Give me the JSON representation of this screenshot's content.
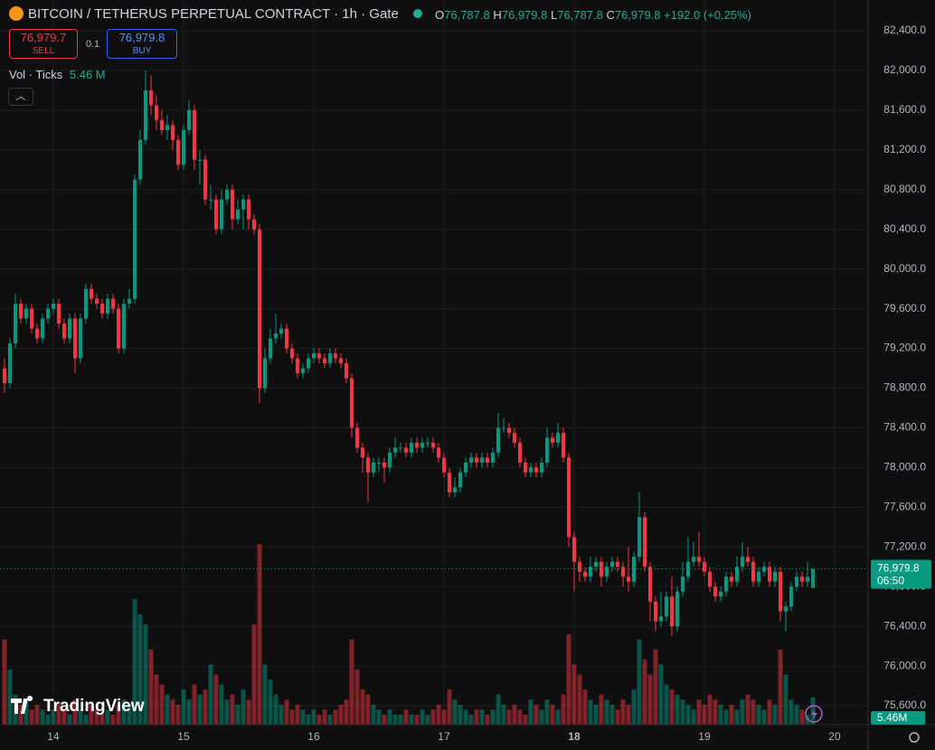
{
  "header": {
    "title": "BITCOIN / TETHERUS PERPETUAL CONTRACT · 1h · Gate",
    "ohlc": [
      {
        "label": "O",
        "value": "76,787.8"
      },
      {
        "label": "H",
        "value": "76,979.8"
      },
      {
        "label": "L",
        "value": "76,787.8"
      },
      {
        "label": "C",
        "value": "76,979.8"
      }
    ],
    "change": "+192.0 (+0.25%)"
  },
  "trade": {
    "sell_price": "76,979.7",
    "sell": "SELL",
    "size": "0.1",
    "buy_price": "76,979.8",
    "buy": "BUY"
  },
  "volume_legend": {
    "label": "Vol · Ticks",
    "value": "5.46 M"
  },
  "logo": "TradingView",
  "chart_data": {
    "type": "candlestick",
    "x": [
      15,
      16,
      17,
      18,
      19,
      20,
      21,
      22,
      23,
      24,
      25,
      26,
      27,
      28,
      29,
      30,
      31,
      32,
      33,
      34,
      35,
      36,
      37,
      38,
      39,
      40,
      41,
      42,
      43,
      44,
      45,
      46,
      47,
      48,
      49,
      50,
      51,
      52,
      53,
      54,
      55,
      56,
      57,
      58,
      59,
      60,
      61,
      62,
      63,
      64,
      65,
      66,
      67,
      68,
      69,
      70,
      71,
      72,
      73,
      74,
      75,
      76,
      77,
      78,
      79,
      80,
      81,
      82,
      83,
      84,
      85,
      86,
      87,
      88,
      89,
      90,
      91,
      92,
      93,
      94,
      95,
      96,
      97,
      98,
      99,
      100,
      101,
      102,
      103,
      104,
      105,
      106,
      107,
      108,
      109,
      110,
      111,
      112,
      113,
      114,
      115,
      116,
      117,
      118,
      119,
      120,
      121,
      122,
      123,
      124,
      125,
      126,
      127,
      128,
      129,
      130,
      131,
      132,
      133,
      134,
      135,
      136,
      137,
      138,
      139,
      140,
      141,
      142,
      143,
      144,
      145,
      146,
      147,
      148,
      149,
      150,
      151,
      152,
      153,
      154,
      155,
      156,
      157,
      158,
      159,
      160,
      161,
      162,
      163,
      164
    ],
    "open": [
      79000,
      78850,
      79250,
      79650,
      79500,
      79600,
      79400,
      79300,
      79500,
      79600,
      79650,
      79450,
      79300,
      79500,
      79100,
      79500,
      79800,
      79700,
      79650,
      79550,
      79700,
      79600,
      79200,
      79650,
      79700,
      80900,
      81300,
      81800,
      81650,
      81500,
      81400,
      81450,
      81300,
      81050,
      81400,
      81600,
      81100,
      81100,
      80700,
      80700,
      80400,
      80700,
      80800,
      80500,
      80600,
      80700,
      80500,
      80400,
      78800,
      79100,
      79300,
      79350,
      79400,
      79200,
      79100,
      78950,
      79000,
      79100,
      79150,
      79100,
      79050,
      79150,
      79100,
      79050,
      78900,
      78400,
      78200,
      78100,
      77950,
      78050,
      78050,
      78000,
      78150,
      78200,
      78200,
      78150,
      78250,
      78200,
      78250,
      78250,
      78200,
      78100,
      77950,
      77750,
      77800,
      77950,
      78050,
      78100,
      78050,
      78100,
      78050,
      78150,
      78400,
      78400,
      78350,
      78250,
      78050,
      77950,
      78000,
      77950,
      78050,
      78300,
      78250,
      78350,
      78100,
      77300,
      77050,
      76950,
      76900,
      77000,
      77050,
      76900,
      77000,
      77050,
      77000,
      76900,
      76850,
      77100,
      77500,
      77000,
      76650,
      76450,
      76500,
      76700,
      76400,
      76750,
      76900,
      77050,
      77100,
      77050,
      76950,
      76800,
      76700,
      76750,
      76900,
      76850,
      77000,
      77100,
      77050,
      76850,
      76950,
      77000,
      76850,
      76950,
      76550,
      76600,
      76800,
      76900,
      76850,
      76787.8
    ],
    "high": [
      79100,
      79300,
      79750,
      79700,
      79650,
      79650,
      79450,
      79550,
      79650,
      79700,
      79700,
      79500,
      79550,
      79550,
      79550,
      79850,
      79850,
      79750,
      79700,
      79750,
      79750,
      79650,
      79700,
      79800,
      80950,
      81400,
      82000,
      81950,
      81750,
      81600,
      81550,
      81500,
      81350,
      81450,
      81700,
      81650,
      81200,
      81150,
      80850,
      80750,
      80800,
      80850,
      80850,
      80700,
      80750,
      80750,
      80550,
      80450,
      79200,
      79400,
      79550,
      79450,
      79450,
      79250,
      79150,
      79050,
      79150,
      79200,
      79200,
      79150,
      79200,
      79200,
      79150,
      79100,
      78950,
      78450,
      78250,
      78150,
      78100,
      78100,
      78100,
      78200,
      78300,
      78250,
      78250,
      78300,
      78300,
      78300,
      78300,
      78300,
      78250,
      78150,
      78000,
      77900,
      78000,
      78100,
      78150,
      78150,
      78150,
      78150,
      78200,
      78550,
      78500,
      78450,
      78400,
      78300,
      78100,
      78050,
      78050,
      78100,
      78400,
      78350,
      78450,
      78400,
      78150,
      77350,
      77100,
      77000,
      77100,
      77100,
      77100,
      77050,
      77100,
      77100,
      77050,
      77200,
      77150,
      77750,
      77550,
      77050,
      76700,
      76750,
      76750,
      76900,
      76800,
      77050,
      77300,
      77250,
      77350,
      77100,
      77000,
      76850,
      76800,
      76950,
      76950,
      77100,
      77250,
      77200,
      77100,
      77000,
      77050,
      77050,
      77000,
      77000,
      76650,
      76850,
      76950,
      76950,
      77050,
      76979.8
    ],
    "low": [
      78750,
      78800,
      79200,
      79450,
      79450,
      79350,
      79250,
      79250,
      79450,
      79550,
      79400,
      79250,
      79250,
      78950,
      79050,
      79450,
      79650,
      79600,
      79500,
      79500,
      79550,
      79150,
      79150,
      79600,
      79650,
      80850,
      81250,
      81550,
      81400,
      81350,
      81300,
      81200,
      81000,
      81000,
      81350,
      81000,
      80850,
      80650,
      80600,
      80350,
      80350,
      80650,
      80400,
      80450,
      80400,
      80400,
      80350,
      78650,
      78750,
      79050,
      79250,
      79300,
      79150,
      79050,
      78900,
      78900,
      78950,
      79050,
      79050,
      79000,
      79000,
      79050,
      79000,
      78850,
      78300,
      78150,
      77950,
      77650,
      77900,
      77950,
      77850,
      77950,
      78100,
      78150,
      78100,
      78100,
      78150,
      78150,
      78200,
      78150,
      78050,
      77900,
      77700,
      77700,
      77750,
      77900,
      78000,
      78000,
      78000,
      78000,
      78000,
      78100,
      78350,
      78300,
      78200,
      78000,
      77900,
      77900,
      77900,
      77900,
      78000,
      78200,
      78200,
      78050,
      77200,
      76750,
      76850,
      76850,
      76850,
      76950,
      76800,
      76850,
      76950,
      76950,
      76800,
      76750,
      76800,
      77050,
      76950,
      76450,
      76350,
      76400,
      76450,
      76300,
      76350,
      76700,
      76850,
      77000,
      77000,
      76900,
      76750,
      76650,
      76650,
      76700,
      76800,
      76800,
      76950,
      77000,
      76800,
      76800,
      76900,
      76800,
      76800,
      76450,
      76350,
      76550,
      76750,
      76800,
      76800,
      76787.8
    ],
    "close": [
      78850,
      79250,
      79650,
      79500,
      79600,
      79400,
      79300,
      79500,
      79600,
      79650,
      79450,
      79300,
      79500,
      79100,
      79500,
      79800,
      79700,
      79650,
      79550,
      79700,
      79600,
      79200,
      79650,
      79700,
      80900,
      81300,
      81800,
      81650,
      81500,
      81400,
      81450,
      81300,
      81050,
      81400,
      81600,
      81100,
      81100,
      80700,
      80700,
      80400,
      80700,
      80800,
      80500,
      80600,
      80700,
      80500,
      80400,
      78800,
      79100,
      79300,
      79350,
      79400,
      79200,
      79100,
      78950,
      79000,
      79100,
      79150,
      79100,
      79050,
      79150,
      79100,
      79050,
      78900,
      78400,
      78200,
      78100,
      77950,
      78050,
      78050,
      78000,
      78150,
      78200,
      78200,
      78150,
      78250,
      78200,
      78250,
      78250,
      78200,
      78100,
      77950,
      77750,
      77800,
      77950,
      78050,
      78100,
      78050,
      78100,
      78050,
      78150,
      78400,
      78400,
      78350,
      78250,
      78050,
      77950,
      78000,
      77950,
      78050,
      78300,
      78250,
      78350,
      78100,
      77300,
      77050,
      76950,
      76900,
      77000,
      77050,
      76900,
      77000,
      77050,
      77000,
      76900,
      76850,
      77100,
      77500,
      77000,
      76650,
      76450,
      76500,
      76700,
      76400,
      76750,
      76900,
      77050,
      77100,
      77050,
      76950,
      76800,
      76700,
      76750,
      76900,
      76850,
      77000,
      77100,
      77050,
      76850,
      76950,
      77000,
      76850,
      76950,
      76550,
      76600,
      76800,
      76900,
      76850,
      76900,
      76979.8
    ],
    "volume": [
      17,
      11,
      6,
      4,
      5,
      3,
      4,
      3,
      2,
      3,
      4,
      3,
      2,
      5,
      3,
      2,
      4,
      3,
      2,
      3,
      2,
      4,
      5,
      4,
      25,
      22,
      20,
      15,
      10,
      8,
      6,
      5,
      4,
      7,
      5,
      8,
      6,
      7,
      12,
      10,
      8,
      5,
      6,
      4,
      7,
      5,
      20,
      36,
      12,
      9,
      6,
      4,
      5,
      3,
      4,
      3,
      2,
      3,
      2,
      3,
      2,
      3,
      4,
      5,
      17,
      11,
      7,
      6,
      4,
      3,
      2,
      3,
      2,
      2,
      3,
      2,
      2,
      3,
      2,
      3,
      4,
      3,
      7,
      5,
      4,
      3,
      2,
      3,
      3,
      2,
      3,
      6,
      4,
      3,
      4,
      3,
      2,
      5,
      4,
      3,
      5,
      4,
      3,
      6,
      18,
      12,
      10,
      7,
      5,
      4,
      6,
      5,
      4,
      3,
      5,
      4,
      7,
      17,
      13,
      10,
      15,
      12,
      8,
      7,
      6,
      5,
      4,
      3,
      5,
      4,
      6,
      5,
      4,
      3,
      4,
      3,
      5,
      6,
      5,
      4,
      3,
      5,
      4,
      15,
      10,
      5,
      4,
      3,
      2,
      5.46
    ],
    "last_price_label": "76,979.8",
    "countdown": "06:50",
    "last_volume_label": "5.46M",
    "up_color": "#089981",
    "down_color": "#f23645",
    "xlim": [
      14.17,
      174.17
    ],
    "xticks": [
      {
        "value": 24,
        "label": "14"
      },
      {
        "value": 48,
        "label": "15"
      },
      {
        "value": 72,
        "label": "16"
      },
      {
        "value": 96,
        "label": "17"
      },
      {
        "value": 120,
        "label": "18",
        "bold": true
      },
      {
        "value": 144,
        "label": "19"
      },
      {
        "value": 168,
        "label": "20"
      }
    ],
    "ylim": [
      75409,
      82710
    ],
    "yticks": [
      {
        "value": 82400,
        "label": "82,400.0"
      },
      {
        "value": 82000,
        "label": "82,000.0"
      },
      {
        "value": 81600,
        "label": "81,600.0"
      },
      {
        "value": 81200,
        "label": "81,200.0"
      },
      {
        "value": 80800,
        "label": "80,800.0"
      },
      {
        "value": 80400,
        "label": "80,400.0"
      },
      {
        "value": 80000,
        "label": "80,000.0"
      },
      {
        "value": 79600,
        "label": "79,600.0"
      },
      {
        "value": 79200,
        "label": "79,200.0"
      },
      {
        "value": 78800,
        "label": "78,800.0"
      },
      {
        "value": 78400,
        "label": "78,400.0"
      },
      {
        "value": 78000,
        "label": "78,000.0"
      },
      {
        "value": 77600,
        "label": "77,600.0"
      },
      {
        "value": 77200,
        "label": "77,200.0"
      },
      {
        "value": 76800,
        "label": "76,800.0"
      },
      {
        "value": 76400,
        "label": "76,400.0"
      },
      {
        "value": 76000,
        "label": "76,000.0"
      },
      {
        "value": 75600,
        "label": "75,600.0"
      }
    ],
    "grid": true
  }
}
